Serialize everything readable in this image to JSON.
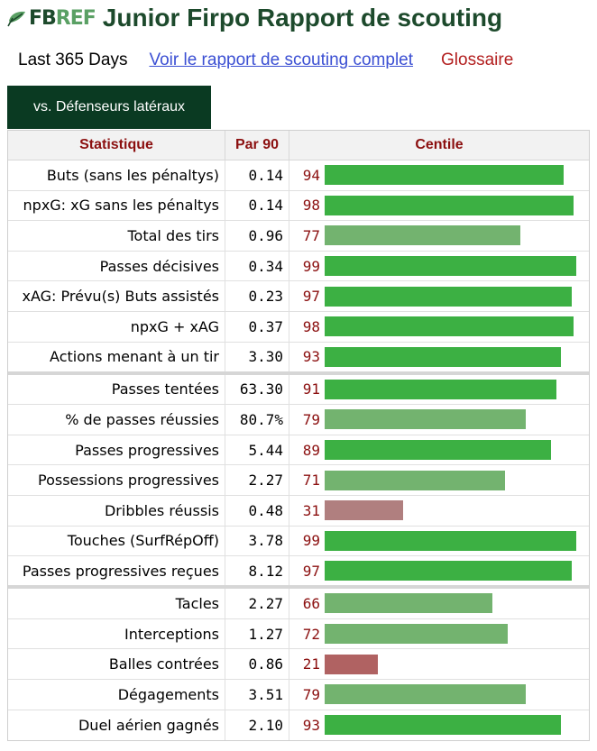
{
  "header": {
    "logo_text_fb": "FB",
    "logo_text_ref": "REF",
    "title": "Junior Firpo Rapport de scouting"
  },
  "links": {
    "period": "Last 365 Days",
    "full_report": "Voir le rapport de scouting complet",
    "glossary": "Glossaire"
  },
  "tab": {
    "label": "vs. Défenseurs latéraux"
  },
  "table": {
    "headers": {
      "stat": "Statistique",
      "per90": "Par 90",
      "percentile": "Centile"
    },
    "colors": {
      "high": "#3cb043",
      "mid": "#73b36f",
      "low": "#b07f7f",
      "verylow": "#b06262"
    },
    "groups": [
      {
        "rows": [
          {
            "stat": "Buts (sans les pénaltys)",
            "per90": "0.14",
            "percentile": "94"
          },
          {
            "stat": "npxG: xG sans les pénaltys",
            "per90": "0.14",
            "percentile": "98"
          },
          {
            "stat": "Total des tirs",
            "per90": "0.96",
            "percentile": "77"
          },
          {
            "stat": "Passes décisives",
            "per90": "0.34",
            "percentile": "99"
          },
          {
            "stat": "xAG: Prévu(s) Buts assistés",
            "per90": "0.23",
            "percentile": "97"
          },
          {
            "stat": "npxG + xAG",
            "per90": "0.37",
            "percentile": "98"
          },
          {
            "stat": "Actions menant à un tir",
            "per90": "3.30",
            "percentile": "93"
          }
        ]
      },
      {
        "rows": [
          {
            "stat": "Passes tentées",
            "per90": "63.30",
            "percentile": "91"
          },
          {
            "stat": "% de passes réussies",
            "per90": "80.7%",
            "percentile": "79"
          },
          {
            "stat": "Passes progressives",
            "per90": "5.44",
            "percentile": "89"
          },
          {
            "stat": "Possessions progressives",
            "per90": "2.27",
            "percentile": "71"
          },
          {
            "stat": "Dribbles réussis",
            "per90": "0.48",
            "percentile": "31"
          },
          {
            "stat": "Touches (SurfRépOff)",
            "per90": "3.78",
            "percentile": "99"
          },
          {
            "stat": "Passes progressives reçues",
            "per90": "8.12",
            "percentile": "97"
          }
        ]
      },
      {
        "rows": [
          {
            "stat": "Tacles",
            "per90": "2.27",
            "percentile": "66"
          },
          {
            "stat": "Interceptions",
            "per90": "1.27",
            "percentile": "72"
          },
          {
            "stat": "Balles contrées",
            "per90": "0.86",
            "percentile": "21"
          },
          {
            "stat": "Dégagements",
            "per90": "3.51",
            "percentile": "79"
          },
          {
            "stat": "Duel aérien gagnés",
            "per90": "2.10",
            "percentile": "93"
          }
        ]
      }
    ]
  }
}
